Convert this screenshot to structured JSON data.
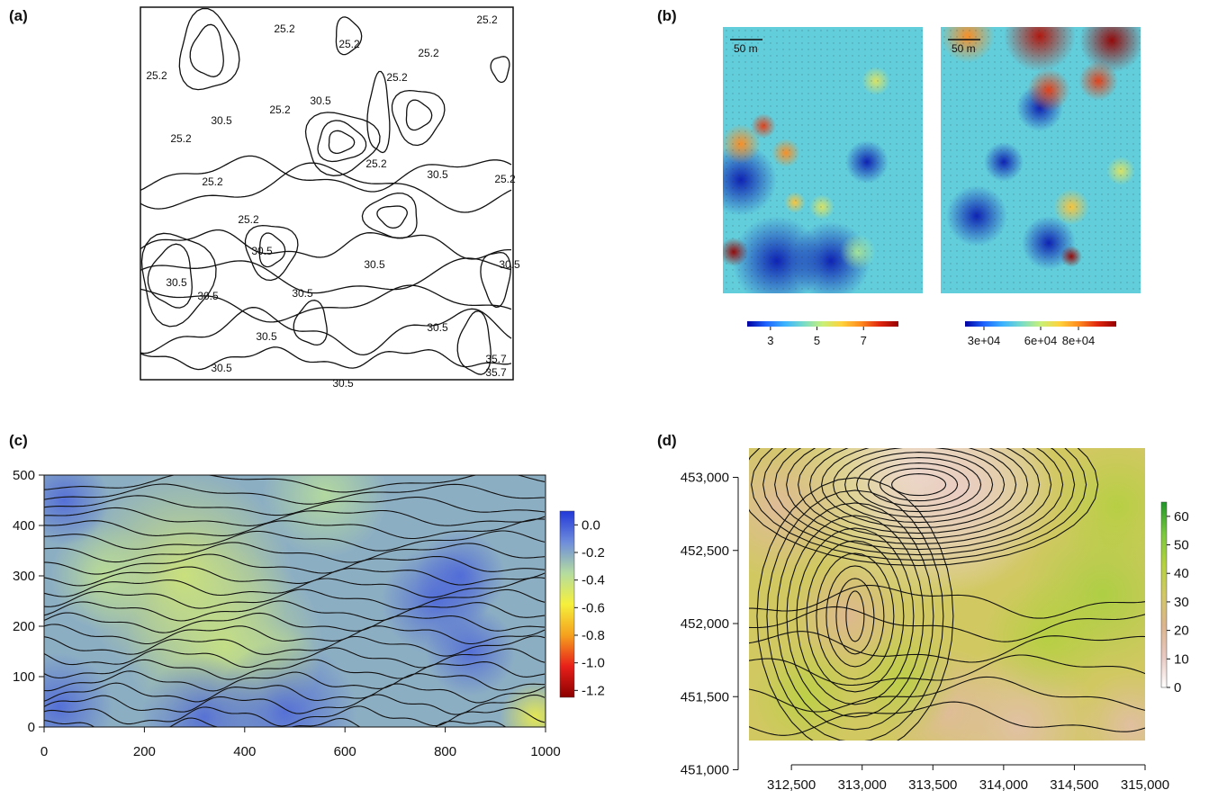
{
  "figure": {
    "panel_labels": [
      "(a)",
      "(b)",
      "(c)",
      "(d)"
    ]
  },
  "chart_data": [
    {
      "panel": "(a)",
      "type": "contour",
      "contour_labels": [
        "25.2",
        "25.2",
        "25.2",
        "25.2",
        "25.2",
        "25.2",
        "25.2",
        "25.2",
        "25.2",
        "25.2",
        "25.2",
        "25.2",
        "30.5",
        "30.5",
        "30.5",
        "30.5",
        "30.5",
        "30.5",
        "30.5",
        "30.5",
        "30.5",
        "30.5",
        "30.5",
        "30.5",
        "30.5",
        "35.7",
        "35.7"
      ],
      "grid": false
    },
    {
      "panel": "(b)",
      "type": "heatmap",
      "maps": [
        {
          "scale_bar": "50 m",
          "colorbar_ticks": [
            "3",
            "5",
            "7"
          ],
          "range": [
            2,
            8.5
          ]
        },
        {
          "scale_bar": "50 m",
          "colorbar_ticks": [
            "3e+04",
            "6e+04",
            "8e+04"
          ],
          "range": [
            20000,
            100000
          ]
        }
      ],
      "colors": [
        "#0000a0",
        "#1e64ff",
        "#3cb4ff",
        "#78dcc8",
        "#c8f078",
        "#ffd23c",
        "#ff8c1e",
        "#e02810",
        "#960000"
      ]
    },
    {
      "panel": "(c)",
      "type": "heatmap",
      "xlim": [
        0,
        1000
      ],
      "ylim": [
        0,
        500
      ],
      "x_ticks": [
        "0",
        "200",
        "400",
        "600",
        "800",
        "1000"
      ],
      "y_ticks": [
        "0",
        "100",
        "200",
        "300",
        "400",
        "500"
      ],
      "colorbar_ticks": [
        "0.0",
        "-0.2",
        "-0.4",
        "-0.6",
        "-0.8",
        "-1.0",
        "-1.2"
      ],
      "colorbar_range": [
        -1.25,
        0.1
      ],
      "colors": [
        "#8b0000",
        "#e8201a",
        "#f5a11e",
        "#f5f03c",
        "#b4dca0",
        "#6e8cdc",
        "#2238d8"
      ]
    },
    {
      "panel": "(d)",
      "type": "heatmap",
      "xlim": [
        312500,
        315000
      ],
      "ylim": [
        451000,
        453000
      ],
      "x_ticks": [
        "312,500",
        "313,000",
        "313,500",
        "314,000",
        "314,500",
        "315,000"
      ],
      "y_ticks": [
        "451,000",
        "451,500",
        "452,000",
        "452,500",
        "453,000"
      ],
      "colorbar_ticks": [
        "0",
        "10",
        "20",
        "30",
        "40",
        "50",
        "60"
      ],
      "colorbar_range": [
        0,
        65
      ],
      "colors": [
        "#ffffff",
        "#e8c8c0",
        "#dcb48c",
        "#d2c864",
        "#b4d23c",
        "#78c83c",
        "#1e9628"
      ]
    }
  ]
}
